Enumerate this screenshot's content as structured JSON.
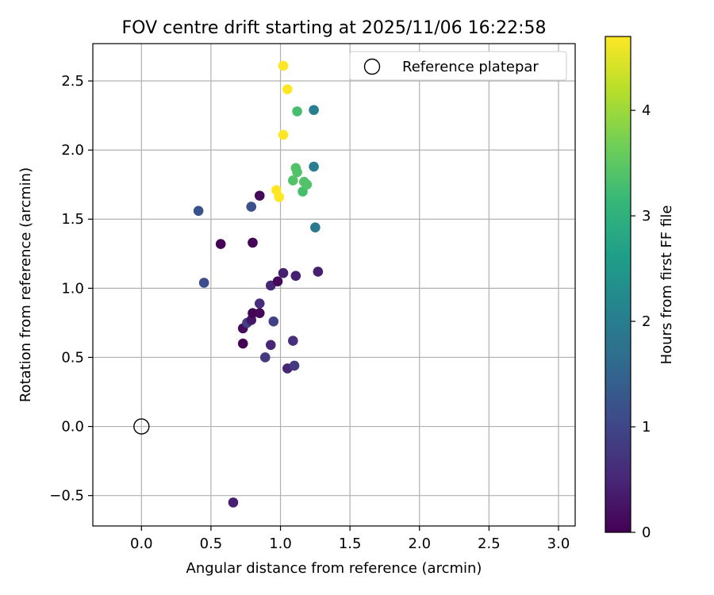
{
  "chart_data": {
    "type": "scatter",
    "title": "FOV centre drift starting at 2025/11/06 16:22:58",
    "xlabel": "Angular distance from reference (arcmin)",
    "ylabel": "Rotation from reference (arcmin)",
    "xlim": [
      -0.35,
      3.12
    ],
    "ylim": [
      -0.72,
      2.77
    ],
    "xticks": [
      0.0,
      0.5,
      1.0,
      1.5,
      2.0,
      2.5,
      3.0
    ],
    "xtick_labels": [
      "0.0",
      "0.5",
      "1.0",
      "1.5",
      "2.0",
      "2.5",
      "3.0"
    ],
    "yticks": [
      -0.5,
      0.0,
      0.5,
      1.0,
      1.5,
      2.0,
      2.5
    ],
    "ytick_labels": [
      "−0.5",
      "0.0",
      "0.5",
      "1.0",
      "1.5",
      "2.0",
      "2.5"
    ],
    "grid": true,
    "legend": {
      "position": "top-right",
      "label": "Reference platepar"
    },
    "reference_point": {
      "x": 0.0,
      "y": 0.0
    },
    "colorbar": {
      "label": "Hours from first FF file",
      "min": 0,
      "max": 4.7,
      "ticks": [
        0,
        1,
        2,
        3,
        4
      ],
      "tick_labels": [
        "0",
        "1",
        "2",
        "3",
        "4"
      ],
      "colormap": [
        "#440154",
        "#482878",
        "#3e4989",
        "#31688e",
        "#26828e",
        "#1f9e89",
        "#35b779",
        "#6ece58",
        "#b5de2b",
        "#fde725"
      ]
    },
    "points": [
      {
        "x": 0.66,
        "y": -0.55,
        "hours": 0.4
      },
      {
        "x": 0.41,
        "y": 1.56,
        "hours": 1.2
      },
      {
        "x": 0.45,
        "y": 1.04,
        "hours": 1.1
      },
      {
        "x": 0.57,
        "y": 1.32,
        "hours": 0.05
      },
      {
        "x": 0.73,
        "y": 0.6,
        "hours": 0.0
      },
      {
        "x": 0.73,
        "y": 0.71,
        "hours": 0.15
      },
      {
        "x": 0.76,
        "y": 0.75,
        "hours": 0.9
      },
      {
        "x": 0.79,
        "y": 0.77,
        "hours": 0.3
      },
      {
        "x": 0.79,
        "y": 1.59,
        "hours": 1.2
      },
      {
        "x": 0.8,
        "y": 1.33,
        "hours": 0.05
      },
      {
        "x": 0.8,
        "y": 0.82,
        "hours": 0.05
      },
      {
        "x": 0.85,
        "y": 0.82,
        "hours": 0.1
      },
      {
        "x": 0.85,
        "y": 0.89,
        "hours": 0.6
      },
      {
        "x": 0.85,
        "y": 1.67,
        "hours": 0.1
      },
      {
        "x": 0.89,
        "y": 0.5,
        "hours": 0.8
      },
      {
        "x": 0.93,
        "y": 1.02,
        "hours": 0.5
      },
      {
        "x": 0.93,
        "y": 0.59,
        "hours": 0.5
      },
      {
        "x": 0.95,
        "y": 0.76,
        "hours": 0.9
      },
      {
        "x": 0.97,
        "y": 1.71,
        "hours": 4.7
      },
      {
        "x": 0.98,
        "y": 1.05,
        "hours": 0.1
      },
      {
        "x": 0.99,
        "y": 1.66,
        "hours": 4.7
      },
      {
        "x": 1.02,
        "y": 2.61,
        "hours": 4.7
      },
      {
        "x": 1.02,
        "y": 1.11,
        "hours": 0.4
      },
      {
        "x": 1.02,
        "y": 2.11,
        "hours": 4.7
      },
      {
        "x": 1.05,
        "y": 2.44,
        "hours": 4.7
      },
      {
        "x": 1.05,
        "y": 0.42,
        "hours": 0.5
      },
      {
        "x": 1.09,
        "y": 0.62,
        "hours": 0.6
      },
      {
        "x": 1.09,
        "y": 1.78,
        "hours": 3.4
      },
      {
        "x": 1.1,
        "y": 0.44,
        "hours": 0.8
      },
      {
        "x": 1.11,
        "y": 1.87,
        "hours": 3.4
      },
      {
        "x": 1.11,
        "y": 1.09,
        "hours": 0.4
      },
      {
        "x": 1.12,
        "y": 2.28,
        "hours": 3.3
      },
      {
        "x": 1.12,
        "y": 1.84,
        "hours": 3.4
      },
      {
        "x": 1.16,
        "y": 1.7,
        "hours": 3.3
      },
      {
        "x": 1.17,
        "y": 1.77,
        "hours": 3.4
      },
      {
        "x": 1.19,
        "y": 1.75,
        "hours": 3.4
      },
      {
        "x": 1.24,
        "y": 2.29,
        "hours": 2.0
      },
      {
        "x": 1.24,
        "y": 1.88,
        "hours": 2.0
      },
      {
        "x": 1.25,
        "y": 1.44,
        "hours": 1.9
      },
      {
        "x": 1.27,
        "y": 1.12,
        "hours": 0.4
      }
    ]
  }
}
